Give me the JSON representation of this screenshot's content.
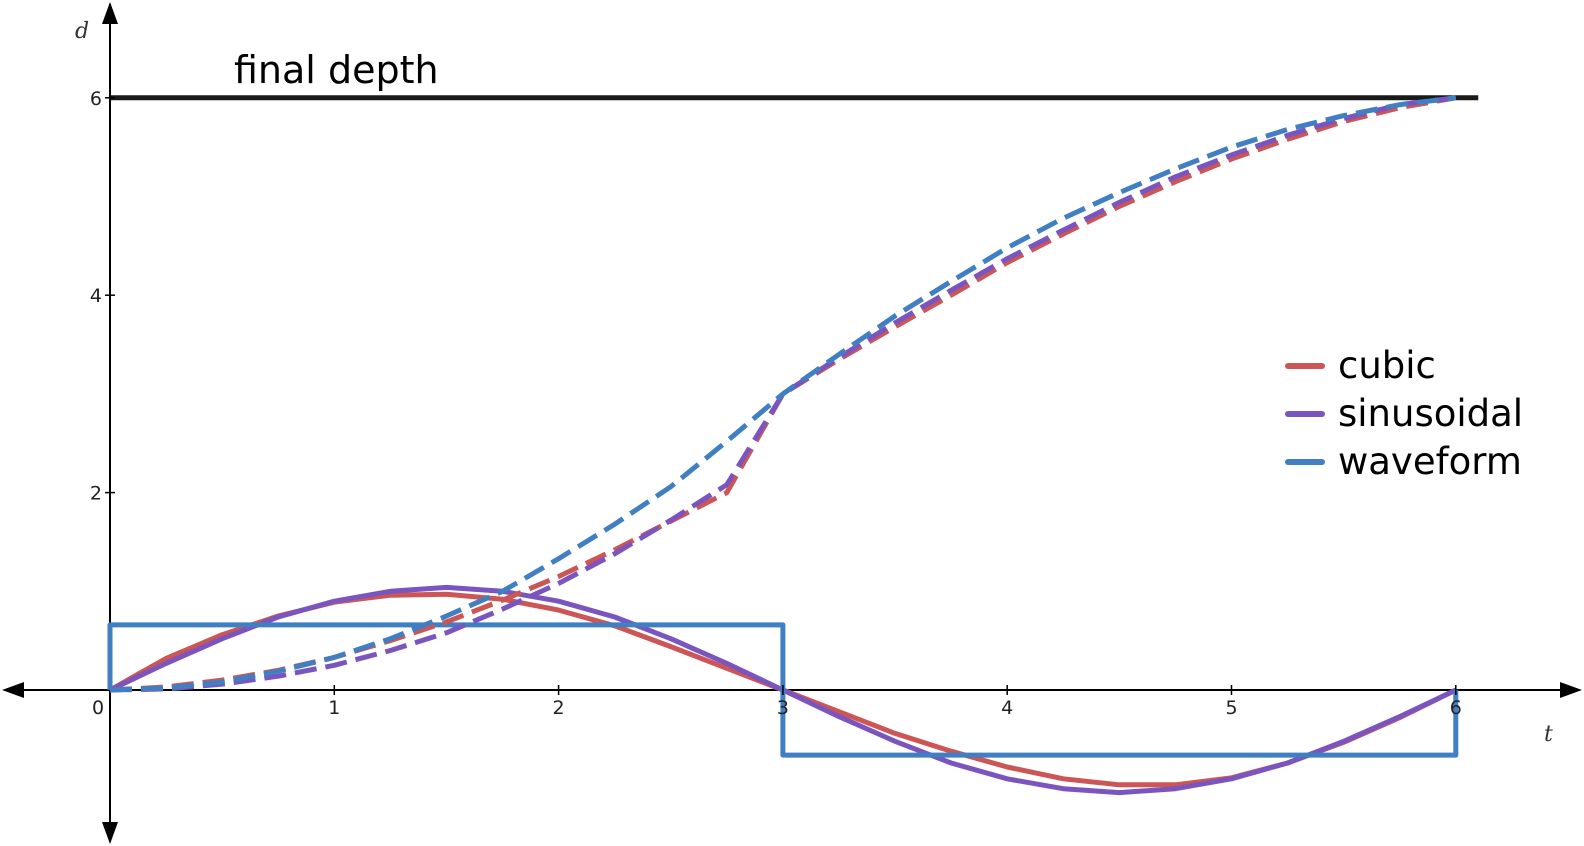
{
  "chart_data": {
    "type": "line",
    "xlabel": "t",
    "ylabel": "d",
    "xlim": [
      -0.48,
      6.55
    ],
    "ylim": [
      -1.48,
      6.95
    ],
    "x_ticks": [
      0,
      1,
      2,
      3,
      4,
      5,
      6
    ],
    "x_tick_labels": [
      "0",
      "1",
      "2",
      "3",
      "4",
      "5",
      "6"
    ],
    "y_ticks": [
      2,
      4,
      6
    ],
    "y_tick_labels": [
      "2",
      "4",
      "6"
    ],
    "grid": false,
    "legend_position": "right",
    "annotation": {
      "text": "final depth",
      "x": 0.55,
      "y": 6.15
    },
    "colors": {
      "cubic": "#cc5555",
      "sinusoidal": "#7a55c0",
      "waveform": "#3f7fc2",
      "final_depth": "#1a1a1a",
      "axis": "#000000"
    },
    "final_depth": {
      "value": 6,
      "color": "#1a1a1a"
    },
    "legend": [
      {
        "name": "cubic",
        "color": "#cc5555"
      },
      {
        "name": "sinusoidal",
        "color": "#7a55c0"
      },
      {
        "name": "waveform",
        "color": "#3f7fc2"
      }
    ],
    "series": [
      {
        "key": "cubic-velocity",
        "group": "cubic",
        "style": "solid",
        "color": "#cc5555",
        "x": [
          0,
          0.25,
          0.5,
          0.75,
          1,
          1.25,
          1.5,
          1.75,
          2,
          2.25,
          2.5,
          2.75,
          3,
          3.25,
          3.5,
          3.75,
          4,
          4.25,
          4.5,
          4.75,
          5,
          5.25,
          5.5,
          5.75,
          6
        ],
        "y": [
          0,
          0.32,
          0.56,
          0.75,
          0.89,
          0.96,
          0.97,
          0.92,
          0.81,
          0.65,
          0.44,
          0.22,
          0,
          -0.22,
          -0.44,
          -0.62,
          -0.78,
          -0.9,
          -0.96,
          -0.96,
          -0.89,
          -0.74,
          -0.53,
          -0.28,
          0
        ]
      },
      {
        "key": "sinusoidal-velocity",
        "group": "sinusoidal",
        "style": "solid",
        "color": "#7a55c0",
        "x": [
          0,
          0.25,
          0.5,
          0.75,
          1,
          1.25,
          1.5,
          1.75,
          2,
          2.25,
          2.5,
          2.75,
          3,
          3.25,
          3.5,
          3.75,
          4,
          4.25,
          4.5,
          4.75,
          5,
          5.25,
          5.5,
          5.75,
          6
        ],
        "y": [
          0,
          0.27,
          0.52,
          0.74,
          0.9,
          1.0,
          1.04,
          1.0,
          0.9,
          0.74,
          0.52,
          0.27,
          0,
          -0.27,
          -0.52,
          -0.74,
          -0.9,
          -1.0,
          -1.04,
          -1.0,
          -0.9,
          -0.74,
          -0.52,
          -0.27,
          0
        ]
      },
      {
        "key": "waveform-velocity",
        "group": "waveform",
        "style": "solid",
        "color": "#3f7fc2",
        "x": [
          0,
          0,
          3,
          3,
          6,
          6
        ],
        "y": [
          0,
          0.66,
          0.66,
          -0.66,
          -0.66,
          0
        ]
      },
      {
        "key": "cubic-depth",
        "group": "cubic",
        "style": "dashed",
        "color": "#cc5555",
        "x": [
          0,
          0.25,
          0.5,
          0.75,
          1,
          1.25,
          1.5,
          1.75,
          2,
          2.25,
          2.5,
          2.75,
          3,
          3.25,
          3.5,
          3.75,
          4,
          4.25,
          4.5,
          4.75,
          5,
          5.25,
          5.5,
          5.75,
          6
        ],
        "y": [
          0,
          0.03,
          0.1,
          0.2,
          0.33,
          0.5,
          0.69,
          0.91,
          1.15,
          1.42,
          1.71,
          2.0,
          3.0,
          3.35,
          3.68,
          4.0,
          4.33,
          4.62,
          4.9,
          5.15,
          5.38,
          5.58,
          5.76,
          5.9,
          6.0
        ]
      },
      {
        "key": "sinusoidal-depth",
        "group": "sinusoidal",
        "style": "dashed",
        "color": "#7a55c0",
        "x": [
          0,
          0.25,
          0.5,
          0.75,
          1,
          1.25,
          1.5,
          1.75,
          2,
          2.25,
          2.5,
          2.75,
          3,
          3.25,
          3.5,
          3.75,
          4,
          4.25,
          4.5,
          4.75,
          5,
          5.25,
          5.5,
          5.75,
          6
        ],
        "y": [
          0,
          0.01,
          0.06,
          0.14,
          0.25,
          0.4,
          0.58,
          0.82,
          1.08,
          1.38,
          1.72,
          2.08,
          3.0,
          3.37,
          3.72,
          4.05,
          4.37,
          4.66,
          4.94,
          5.2,
          5.42,
          5.62,
          5.79,
          5.93,
          6.0
        ]
      },
      {
        "key": "waveform-depth",
        "group": "waveform",
        "style": "dashed",
        "color": "#3f7fc2",
        "x": [
          0,
          0.25,
          0.5,
          0.75,
          1,
          1.25,
          1.5,
          1.75,
          2,
          2.25,
          2.5,
          2.75,
          3,
          3.25,
          3.5,
          3.75,
          4,
          4.25,
          4.5,
          4.75,
          5,
          5.25,
          5.5,
          5.75,
          6
        ],
        "y": [
          0,
          0.02,
          0.08,
          0.19,
          0.33,
          0.52,
          0.75,
          1.0,
          1.33,
          1.68,
          2.06,
          2.52,
          3.0,
          3.4,
          3.79,
          4.14,
          4.48,
          4.78,
          5.04,
          5.28,
          5.5,
          5.68,
          5.82,
          5.93,
          6.0
        ]
      }
    ]
  }
}
